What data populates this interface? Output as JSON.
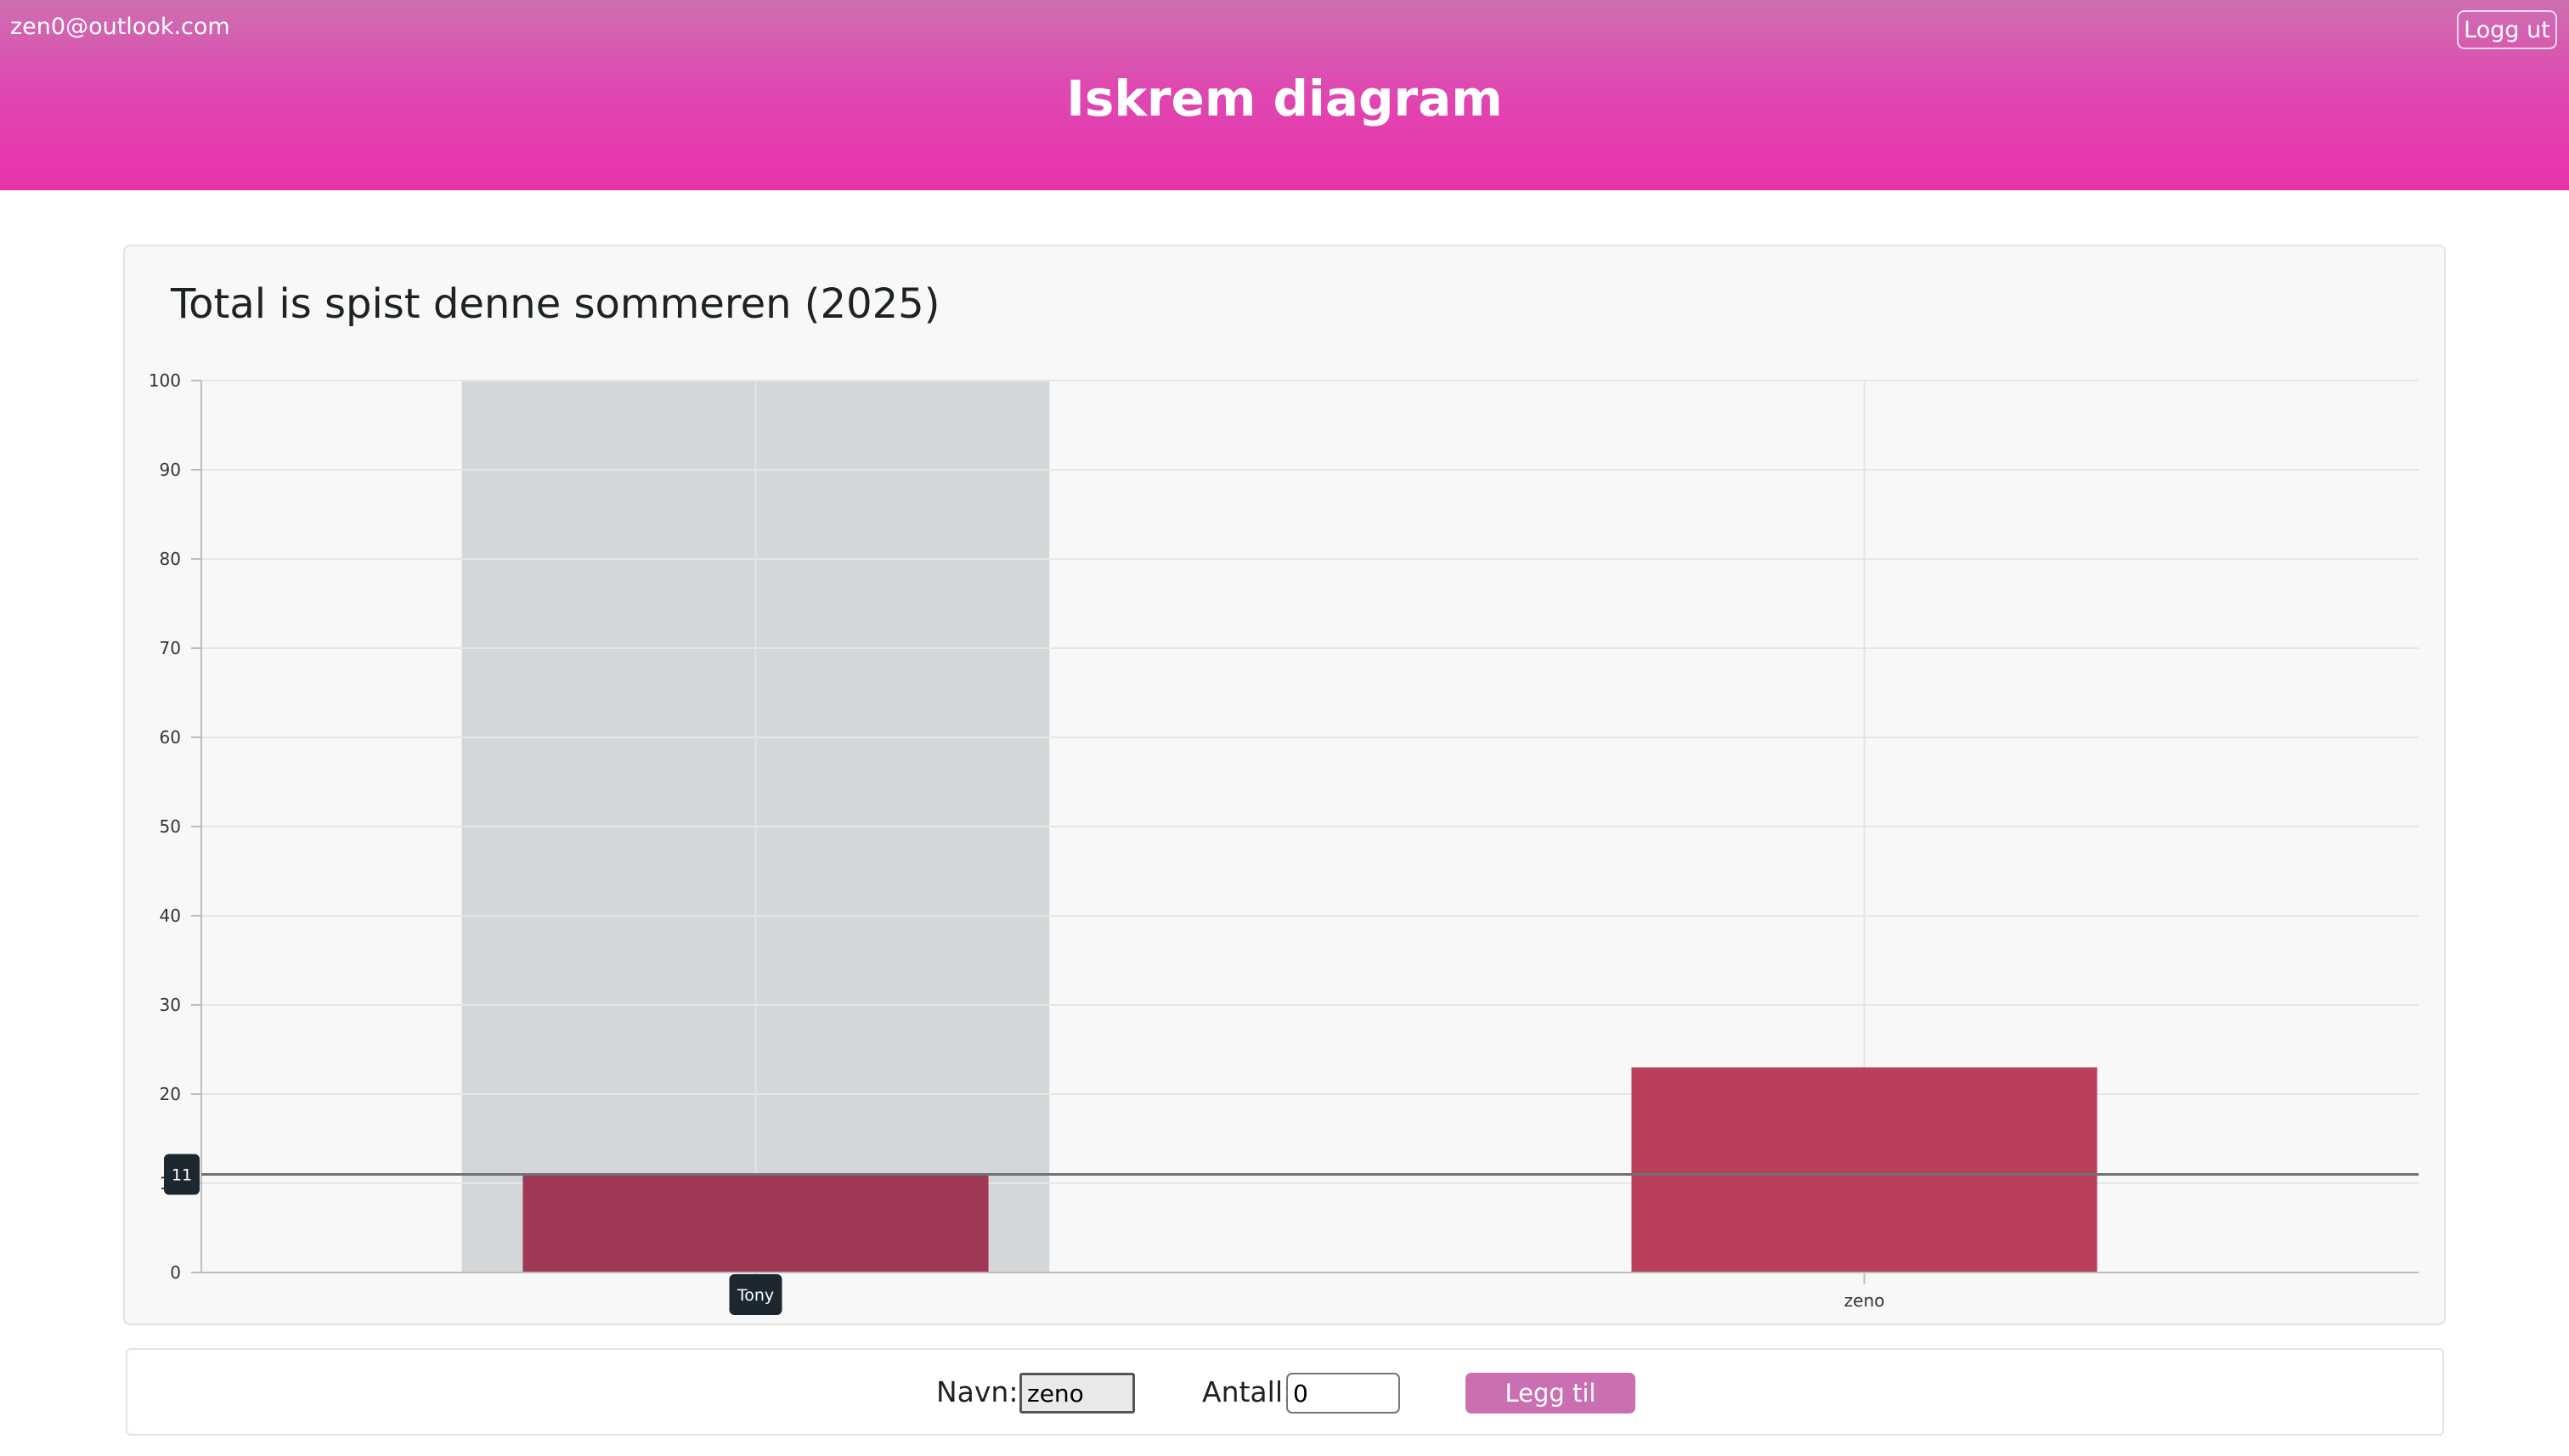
{
  "header": {
    "user_email": "zen0@outlook.com",
    "logout_label": "Logg ut",
    "title": "Iskrem diagram",
    "colors": {
      "gradient_top": "#cd70b1",
      "gradient_bottom": "#e833ac"
    }
  },
  "chart": {
    "title": "Total is spist denne sommeren (2025)"
  },
  "chart_data": {
    "type": "bar",
    "categories": [
      "Tony",
      "zeno"
    ],
    "values": [
      11,
      23
    ],
    "bar_colors": [
      "#9f3855",
      "#b93f5b"
    ],
    "ylim": [
      0,
      100
    ],
    "yticks": [
      0,
      10,
      20,
      30,
      40,
      50,
      60,
      70,
      80,
      90,
      100
    ],
    "grid": true,
    "hover": {
      "category": "Tony",
      "value": 11,
      "tooltip_y_label": "11",
      "tooltip_x_label": "Tony"
    }
  },
  "form": {
    "name_label": "Navn:",
    "name_value": "zeno",
    "amount_label": "Antall:",
    "amount_value": "0",
    "submit_label": "Legg til",
    "submit_color": "#c96fb2"
  }
}
